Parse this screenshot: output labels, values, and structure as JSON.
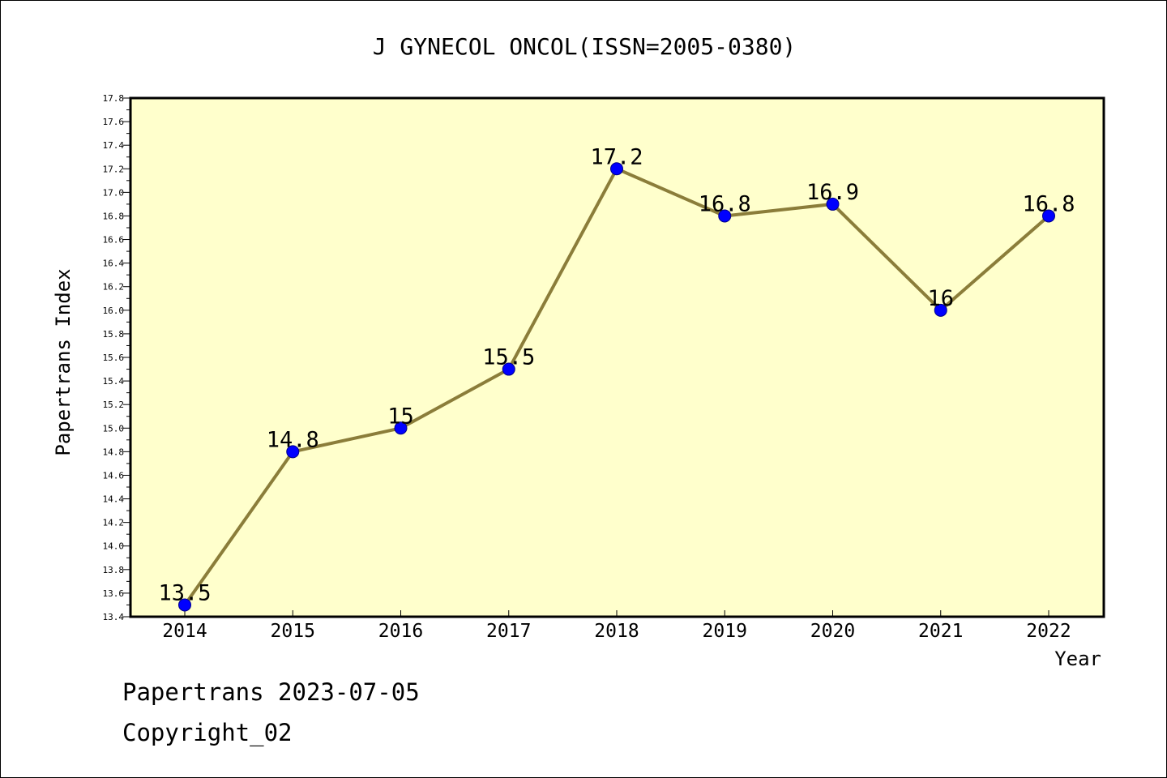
{
  "chart_data": {
    "type": "line",
    "title": "J GYNECOL ONCOL(ISSN=2005-0380)",
    "xlabel": "Year",
    "ylabel": "Papertrans Index",
    "categories": [
      "2014",
      "2015",
      "2016",
      "2017",
      "2018",
      "2019",
      "2020",
      "2021",
      "2022"
    ],
    "values": [
      13.5,
      14.8,
      15,
      15.5,
      17.2,
      16.8,
      16.9,
      16,
      16.8
    ],
    "data_labels": [
      "13.5",
      "14.8",
      "15",
      "15.5",
      "17.2",
      "16.8",
      "16.9",
      "16",
      "16.8"
    ],
    "ylim": [
      13.4,
      17.8
    ],
    "yticks": [
      "13.4",
      "13.6",
      "13.8",
      "14.0",
      "14.2",
      "14.4",
      "14.6",
      "14.8",
      "15.0",
      "15.2",
      "15.4",
      "15.6",
      "15.8",
      "16.0",
      "16.2",
      "16.4",
      "16.6",
      "16.8",
      "17.0",
      "17.2",
      "17.4",
      "17.6",
      "17.8"
    ],
    "grid": false,
    "colors": {
      "plot_background": "#ffffcc",
      "line": "#8b7d3a",
      "marker": "#0000ff"
    }
  },
  "footer": {
    "line1": "Papertrans 2023-07-05",
    "line2": "Copyright_02"
  }
}
